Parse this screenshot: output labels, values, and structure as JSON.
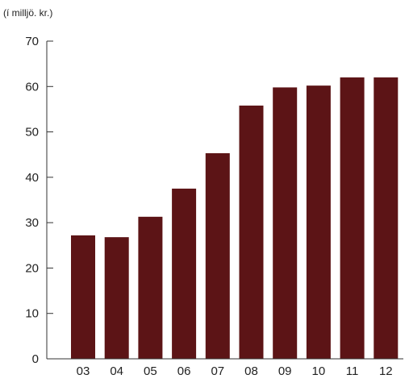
{
  "chart_data": {
    "type": "bar",
    "title": "",
    "unit_label": "(í milljö. kr.)",
    "xlabel": "",
    "ylabel": "",
    "categories": [
      "03",
      "04",
      "05",
      "06",
      "07",
      "08",
      "09",
      "10",
      "11",
      "12"
    ],
    "values": [
      27.2,
      26.8,
      31.3,
      37.5,
      45.3,
      55.8,
      59.8,
      60.2,
      62.0,
      62.0
    ],
    "ylim": [
      0,
      70
    ],
    "yticks": [
      0,
      10,
      20,
      30,
      40,
      50,
      60,
      70
    ],
    "grid": false,
    "legend": "none",
    "bar_color": "#5c1416",
    "axis_color": "#333333"
  }
}
